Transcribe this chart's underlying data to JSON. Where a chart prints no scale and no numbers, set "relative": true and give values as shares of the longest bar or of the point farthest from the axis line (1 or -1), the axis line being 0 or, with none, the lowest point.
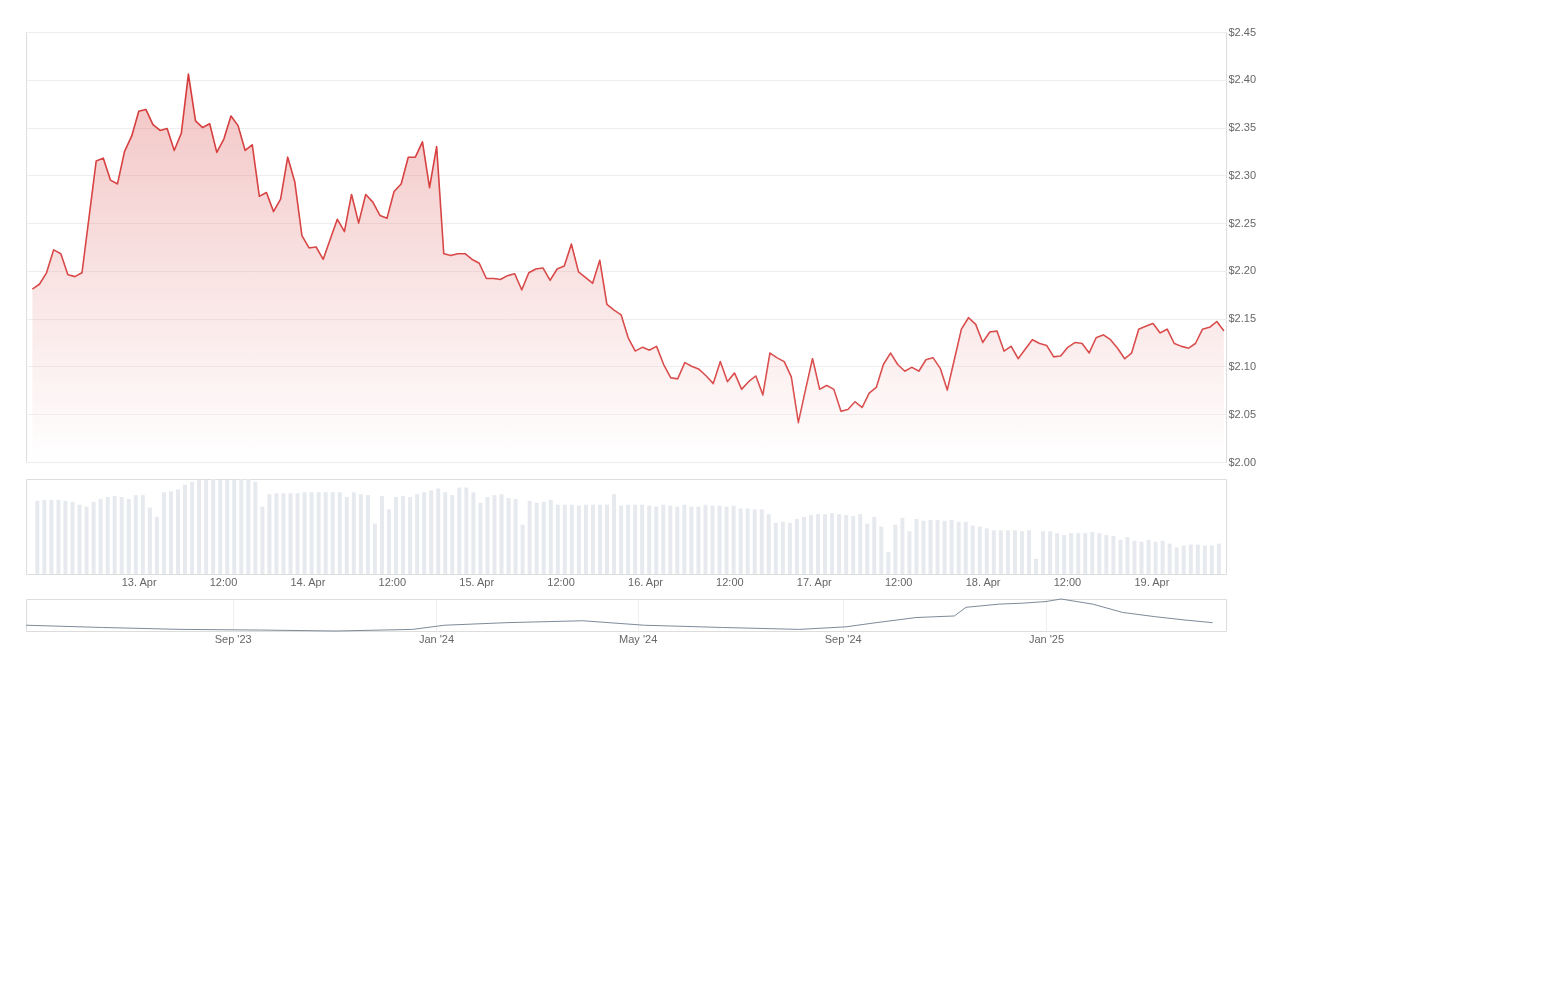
{
  "chart_data": [
    {
      "type": "area",
      "tick_labels": "y",
      "grid": "y",
      "xlim": [
        "2025-04-12T08:42",
        "2025-04-19T09:54"
      ],
      "ylim": [
        2.0,
        2.45
      ],
      "yticks": [
        {
          "value": 2.0,
          "label": "$2.00"
        },
        {
          "value": 2.05,
          "label": "$2.05"
        },
        {
          "value": 2.1,
          "label": "$2.10"
        },
        {
          "value": 2.15,
          "label": "$2.15"
        },
        {
          "value": 2.2,
          "label": "$2.20"
        },
        {
          "value": 2.25,
          "label": "$2.25"
        },
        {
          "value": 2.3,
          "label": "$2.30"
        },
        {
          "value": 2.35,
          "label": "$2.35"
        },
        {
          "value": 2.4,
          "label": "$2.40"
        },
        {
          "value": 2.45,
          "label": "$2.45"
        }
      ],
      "series": [
        {
          "color": "#d63a3a",
          "x": [
            "2025-04-12T09:36",
            "2025-04-12T10:36",
            "2025-04-12T11:36",
            "2025-04-12T12:36",
            "2025-04-12T13:36",
            "2025-04-12T14:36",
            "2025-04-12T15:36",
            "2025-04-12T16:36",
            "2025-04-12T18:36",
            "2025-04-12T19:36",
            "2025-04-12T20:36",
            "2025-04-12T21:36",
            "2025-04-12T22:36",
            "2025-04-12T23:36",
            "2025-04-13T00:36",
            "2025-04-13T01:36",
            "2025-04-13T02:36",
            "2025-04-13T03:36",
            "2025-04-13T04:36",
            "2025-04-13T05:36",
            "2025-04-13T06:36",
            "2025-04-13T07:36",
            "2025-04-13T08:36",
            "2025-04-13T09:36",
            "2025-04-13T10:36",
            "2025-04-13T11:36",
            "2025-04-13T12:36",
            "2025-04-13T13:36",
            "2025-04-13T14:36",
            "2025-04-13T15:36",
            "2025-04-13T16:36",
            "2025-04-13T17:36",
            "2025-04-13T18:36",
            "2025-04-13T19:36",
            "2025-04-13T20:36",
            "2025-04-13T21:36",
            "2025-04-13T22:36",
            "2025-04-13T23:36",
            "2025-04-14T00:36",
            "2025-04-14T01:36",
            "2025-04-14T02:36",
            "2025-04-14T04:36",
            "2025-04-14T05:36",
            "2025-04-14T06:36",
            "2025-04-14T07:36",
            "2025-04-14T08:36",
            "2025-04-14T09:36",
            "2025-04-14T10:36",
            "2025-04-14T11:36",
            "2025-04-14T12:36",
            "2025-04-14T13:36",
            "2025-04-14T14:36",
            "2025-04-14T15:36",
            "2025-04-14T16:36",
            "2025-04-14T17:36",
            "2025-04-14T18:36",
            "2025-04-14T19:36",
            "2025-04-14T20:36",
            "2025-04-14T21:36",
            "2025-04-14T22:36",
            "2025-04-14T23:36",
            "2025-04-15T00:36",
            "2025-04-15T01:36",
            "2025-04-15T02:36",
            "2025-04-15T03:36",
            "2025-04-15T04:36",
            "2025-04-15T05:36",
            "2025-04-15T06:36",
            "2025-04-15T07:36",
            "2025-04-15T08:36",
            "2025-04-15T09:36",
            "2025-04-15T10:36",
            "2025-04-15T11:36",
            "2025-04-15T12:36",
            "2025-04-15T13:36",
            "2025-04-15T14:36",
            "2025-04-15T15:36",
            "2025-04-15T16:36",
            "2025-04-15T17:36",
            "2025-04-15T18:36",
            "2025-04-15T19:36",
            "2025-04-15T20:36",
            "2025-04-15T21:36",
            "2025-04-15T22:36",
            "2025-04-15T23:36",
            "2025-04-16T00:36",
            "2025-04-16T01:36",
            "2025-04-16T02:36",
            "2025-04-16T03:36",
            "2025-04-16T04:36",
            "2025-04-16T05:36",
            "2025-04-16T06:36",
            "2025-04-16T07:36",
            "2025-04-16T08:36",
            "2025-04-16T09:36",
            "2025-04-16T10:36",
            "2025-04-16T11:36",
            "2025-04-16T12:36",
            "2025-04-16T13:36",
            "2025-04-16T14:36",
            "2025-04-16T15:36",
            "2025-04-16T16:36",
            "2025-04-16T17:36",
            "2025-04-16T18:36",
            "2025-04-16T19:36",
            "2025-04-16T20:36",
            "2025-04-16T21:36",
            "2025-04-16T22:36",
            "2025-04-16T23:36",
            "2025-04-17T00:36",
            "2025-04-17T01:36",
            "2025-04-17T02:36",
            "2025-04-17T03:36",
            "2025-04-17T04:36",
            "2025-04-17T05:36",
            "2025-04-17T06:36",
            "2025-04-17T07:36",
            "2025-04-17T08:36",
            "2025-04-17T09:36",
            "2025-04-17T10:36",
            "2025-04-17T11:36",
            "2025-04-17T12:36",
            "2025-04-17T13:36",
            "2025-04-17T14:36",
            "2025-04-17T15:36",
            "2025-04-17T16:36",
            "2025-04-17T17:36",
            "2025-04-17T18:36",
            "2025-04-17T19:36",
            "2025-04-17T20:36",
            "2025-04-17T21:36",
            "2025-04-17T22:36",
            "2025-04-17T23:36",
            "2025-04-18T00:36",
            "2025-04-18T01:36",
            "2025-04-18T02:36",
            "2025-04-18T03:36",
            "2025-04-18T04:36",
            "2025-04-18T05:36",
            "2025-04-18T06:36",
            "2025-04-18T07:36",
            "2025-04-18T08:36",
            "2025-04-18T09:36",
            "2025-04-18T10:36",
            "2025-04-18T11:36",
            "2025-04-18T12:36",
            "2025-04-18T13:36",
            "2025-04-18T14:36",
            "2025-04-18T15:36",
            "2025-04-18T16:36",
            "2025-04-18T17:36",
            "2025-04-18T18:36",
            "2025-04-18T19:36",
            "2025-04-18T20:36",
            "2025-04-18T21:36",
            "2025-04-18T22:36",
            "2025-04-18T23:36",
            "2025-04-19T00:36",
            "2025-04-19T01:36",
            "2025-04-19T02:36",
            "2025-04-19T03:36",
            "2025-04-19T04:36",
            "2025-04-19T05:36",
            "2025-04-19T06:36",
            "2025-04-19T07:36",
            "2025-04-19T08:36",
            "2025-04-19T09:36"
          ],
          "values": [
            2.181,
            2.186,
            2.198,
            2.222,
            2.218,
            2.196,
            2.194,
            2.198,
            2.315,
            2.318,
            2.295,
            2.291,
            2.325,
            2.341,
            2.367,
            2.369,
            2.353,
            2.347,
            2.349,
            2.326,
            2.344,
            2.406,
            2.357,
            2.35,
            2.354,
            2.324,
            2.338,
            2.362,
            2.352,
            2.326,
            2.332,
            2.278,
            2.282,
            2.262,
            2.275,
            2.319,
            2.293,
            2.237,
            2.224,
            2.225,
            2.212,
            2.254,
            2.241,
            2.28,
            2.25,
            2.28,
            2.272,
            2.258,
            2.255,
            2.283,
            2.291,
            2.319,
            2.319,
            2.335,
            2.287,
            2.33,
            2.218,
            2.216,
            2.218,
            2.218,
            2.212,
            2.208,
            2.192,
            2.192,
            2.191,
            2.195,
            2.197,
            2.18,
            2.198,
            2.202,
            2.203,
            2.19,
            2.202,
            2.205,
            2.228,
            2.199,
            2.193,
            2.187,
            2.211,
            2.165,
            2.159,
            2.154,
            2.13,
            2.116,
            2.12,
            2.117,
            2.121,
            2.102,
            2.088,
            2.087,
            2.104,
            2.1,
            2.097,
            2.09,
            2.082,
            2.105,
            2.084,
            2.093,
            2.076,
            2.084,
            2.09,
            2.07,
            2.114,
            2.109,
            2.105,
            2.089,
            2.041,
            2.075,
            2.108,
            2.076,
            2.08,
            2.076,
            2.053,
            2.055,
            2.063,
            2.057,
            2.072,
            2.078,
            2.102,
            2.114,
            2.102,
            2.095,
            2.099,
            2.095,
            2.107,
            2.109,
            2.098,
            2.075,
            2.107,
            2.139,
            2.151,
            2.144,
            2.125,
            2.136,
            2.137,
            2.116,
            2.121,
            2.108,
            2.118,
            2.128,
            2.124,
            2.122,
            2.11,
            2.111,
            2.12,
            2.125,
            2.124,
            2.114,
            2.13,
            2.133,
            2.128,
            2.119,
            2.108,
            2.114,
            2.139,
            2.142,
            2.145,
            2.135,
            2.139,
            2.124,
            2.121,
            2.119,
            2.124,
            2.139,
            2.141,
            2.147,
            2.137
          ]
        }
      ]
    },
    {
      "type": "bar",
      "relative": true,
      "tick_labels": "x",
      "xlim": [
        "2025-04-12T08:42",
        "2025-04-19T09:54"
      ],
      "xticks": [
        {
          "value": "2025-04-13T00:00",
          "label": "13. Apr"
        },
        {
          "value": "2025-04-13T12:00",
          "label": "12:00"
        },
        {
          "value": "2025-04-14T00:00",
          "label": "14. Apr"
        },
        {
          "value": "2025-04-14T12:00",
          "label": "12:00"
        },
        {
          "value": "2025-04-15T00:00",
          "label": "15. Apr"
        },
        {
          "value": "2025-04-15T12:00",
          "label": "12:00"
        },
        {
          "value": "2025-04-16T00:00",
          "label": "16. Apr"
        },
        {
          "value": "2025-04-16T12:00",
          "label": "12:00"
        },
        {
          "value": "2025-04-17T00:00",
          "label": "17. Apr"
        },
        {
          "value": "2025-04-17T12:00",
          "label": "12:00"
        },
        {
          "value": "2025-04-18T00:00",
          "label": "18. Apr"
        },
        {
          "value": "2025-04-18T12:00",
          "label": "12:00"
        },
        {
          "value": "2025-04-19T00:00",
          "label": "19. Apr"
        }
      ],
      "series": [
        {
          "color": "#e6eaee",
          "x": [
            "2025-04-12T09:36",
            "2025-04-12T10:36",
            "2025-04-12T11:36",
            "2025-04-12T12:36",
            "2025-04-12T13:36",
            "2025-04-12T14:36",
            "2025-04-12T15:36",
            "2025-04-12T16:36",
            "2025-04-12T17:36",
            "2025-04-12T18:36",
            "2025-04-12T19:36",
            "2025-04-12T20:36",
            "2025-04-12T21:36",
            "2025-04-12T22:36",
            "2025-04-12T23:36",
            "2025-04-13T00:36",
            "2025-04-13T01:36",
            "2025-04-13T02:36",
            "2025-04-13T03:36",
            "2025-04-13T04:36",
            "2025-04-13T05:36",
            "2025-04-13T06:36",
            "2025-04-13T07:36",
            "2025-04-13T08:36",
            "2025-04-13T09:36",
            "2025-04-13T10:36",
            "2025-04-13T11:36",
            "2025-04-13T12:36",
            "2025-04-13T13:36",
            "2025-04-13T14:36",
            "2025-04-13T15:36",
            "2025-04-13T16:36",
            "2025-04-13T17:36",
            "2025-04-13T18:36",
            "2025-04-13T19:36",
            "2025-04-13T20:36",
            "2025-04-13T21:36",
            "2025-04-13T22:36",
            "2025-04-13T23:36",
            "2025-04-14T00:36",
            "2025-04-14T01:36",
            "2025-04-14T02:36",
            "2025-04-14T03:36",
            "2025-04-14T04:36",
            "2025-04-14T05:36",
            "2025-04-14T06:36",
            "2025-04-14T07:36",
            "2025-04-14T08:36",
            "2025-04-14T09:36",
            "2025-04-14T10:36",
            "2025-04-14T11:36",
            "2025-04-14T12:36",
            "2025-04-14T13:36",
            "2025-04-14T14:36",
            "2025-04-14T15:36",
            "2025-04-14T16:36",
            "2025-04-14T17:36",
            "2025-04-14T18:36",
            "2025-04-14T19:36",
            "2025-04-14T20:36",
            "2025-04-14T21:36",
            "2025-04-14T22:36",
            "2025-04-14T23:36",
            "2025-04-15T00:36",
            "2025-04-15T01:36",
            "2025-04-15T02:36",
            "2025-04-15T03:36",
            "2025-04-15T04:36",
            "2025-04-15T05:36",
            "2025-04-15T06:36",
            "2025-04-15T07:36",
            "2025-04-15T08:36",
            "2025-04-15T09:36",
            "2025-04-15T10:36",
            "2025-04-15T11:36",
            "2025-04-15T12:36",
            "2025-04-15T13:36",
            "2025-04-15T14:36",
            "2025-04-15T15:36",
            "2025-04-15T16:36",
            "2025-04-15T17:36",
            "2025-04-15T18:36",
            "2025-04-15T19:36",
            "2025-04-15T20:36",
            "2025-04-15T21:36",
            "2025-04-15T22:36",
            "2025-04-15T23:36",
            "2025-04-16T00:36",
            "2025-04-16T01:36",
            "2025-04-16T02:36",
            "2025-04-16T03:36",
            "2025-04-16T04:36",
            "2025-04-16T05:36",
            "2025-04-16T06:36",
            "2025-04-16T07:36",
            "2025-04-16T08:36",
            "2025-04-16T09:36",
            "2025-04-16T10:36",
            "2025-04-16T11:36",
            "2025-04-16T12:36",
            "2025-04-16T13:36",
            "2025-04-16T14:36",
            "2025-04-16T15:36",
            "2025-04-16T16:36",
            "2025-04-16T17:36",
            "2025-04-16T18:36",
            "2025-04-16T19:36",
            "2025-04-16T20:36",
            "2025-04-16T21:36",
            "2025-04-16T22:36",
            "2025-04-16T23:36",
            "2025-04-17T00:36",
            "2025-04-17T01:36",
            "2025-04-17T02:36",
            "2025-04-17T03:36",
            "2025-04-17T04:36",
            "2025-04-17T05:36",
            "2025-04-17T06:36",
            "2025-04-17T07:36",
            "2025-04-17T08:36",
            "2025-04-17T09:36",
            "2025-04-17T10:36",
            "2025-04-17T11:36",
            "2025-04-17T12:36",
            "2025-04-17T13:36",
            "2025-04-17T14:36",
            "2025-04-17T15:36",
            "2025-04-17T16:36",
            "2025-04-17T17:36",
            "2025-04-17T18:36",
            "2025-04-17T19:36",
            "2025-04-17T20:36",
            "2025-04-17T21:36",
            "2025-04-17T22:36",
            "2025-04-17T23:36",
            "2025-04-18T00:36",
            "2025-04-18T01:36",
            "2025-04-18T02:36",
            "2025-04-18T03:36",
            "2025-04-18T04:36",
            "2025-04-18T05:36",
            "2025-04-18T06:36",
            "2025-04-18T07:36",
            "2025-04-18T08:36",
            "2025-04-18T09:36",
            "2025-04-18T10:36",
            "2025-04-18T11:36",
            "2025-04-18T12:36",
            "2025-04-18T13:36",
            "2025-04-18T14:36",
            "2025-04-18T15:36",
            "2025-04-18T16:36",
            "2025-04-18T17:36",
            "2025-04-18T18:36",
            "2025-04-18T19:36",
            "2025-04-18T20:36",
            "2025-04-18T21:36",
            "2025-04-18T22:36",
            "2025-04-18T23:36",
            "2025-04-19T00:36",
            "2025-04-19T01:36",
            "2025-04-19T02:36",
            "2025-04-19T03:36",
            "2025-04-19T04:36",
            "2025-04-19T05:36",
            "2025-04-19T06:36",
            "2025-04-19T07:36",
            "2025-04-19T08:36",
            "2025-04-19T09:36"
          ],
          "values": [
            0.77,
            0.78,
            0.78,
            0.78,
            0.77,
            0.76,
            0.73,
            0.71,
            0.76,
            0.79,
            0.81,
            0.82,
            0.81,
            0.79,
            0.83,
            0.83,
            0.7,
            0.6,
            0.86,
            0.87,
            0.89,
            0.94,
            0.97,
            0.99,
            0.99,
            1.0,
            0.99,
            0.99,
            0.99,
            1.0,
            1.0,
            0.97,
            0.71,
            0.84,
            0.85,
            0.85,
            0.85,
            0.85,
            0.86,
            0.86,
            0.86,
            0.86,
            0.86,
            0.86,
            0.81,
            0.86,
            0.84,
            0.83,
            0.53,
            0.82,
            0.68,
            0.81,
            0.82,
            0.81,
            0.84,
            0.86,
            0.88,
            0.9,
            0.86,
            0.83,
            0.91,
            0.91,
            0.86,
            0.75,
            0.81,
            0.83,
            0.84,
            0.8,
            0.79,
            0.52,
            0.77,
            0.75,
            0.76,
            0.78,
            0.73,
            0.73,
            0.73,
            0.72,
            0.73,
            0.73,
            0.73,
            0.73,
            0.84,
            0.72,
            0.73,
            0.73,
            0.73,
            0.72,
            0.71,
            0.73,
            0.72,
            0.71,
            0.73,
            0.71,
            0.71,
            0.73,
            0.72,
            0.72,
            0.71,
            0.72,
            0.69,
            0.69,
            0.68,
            0.68,
            0.63,
            0.54,
            0.55,
            0.54,
            0.58,
            0.6,
            0.62,
            0.63,
            0.63,
            0.64,
            0.63,
            0.62,
            0.61,
            0.63,
            0.53,
            0.6,
            0.5,
            0.23,
            0.52,
            0.59,
            0.45,
            0.58,
            0.56,
            0.57,
            0.57,
            0.56,
            0.57,
            0.55,
            0.55,
            0.51,
            0.5,
            0.48,
            0.46,
            0.46,
            0.46,
            0.46,
            0.45,
            0.46,
            0.16,
            0.45,
            0.45,
            0.43,
            0.41,
            0.43,
            0.43,
            0.43,
            0.44,
            0.43,
            0.41,
            0.4,
            0.36,
            0.39,
            0.35,
            0.34,
            0.36,
            0.34,
            0.35,
            0.32,
            0.28,
            0.3,
            0.31,
            0.31,
            0.3,
            0.3,
            0.32
          ]
        }
      ]
    },
    {
      "type": "line",
      "relative": true,
      "tick_labels": "x",
      "grid": "x",
      "xlim": [
        "2023-04-30",
        "2025-04-19"
      ],
      "xticks": [
        {
          "value": "2023-09-01",
          "label": "Sep '23"
        },
        {
          "value": "2024-01-01",
          "label": "Jan '24"
        },
        {
          "value": "2024-05-01",
          "label": "May '24"
        },
        {
          "value": "2024-09-01",
          "label": "Sep '24"
        },
        {
          "value": "2025-01-01",
          "label": "Jan '25"
        }
      ],
      "series": [
        {
          "color": "#7d8b99",
          "x": [
            "2023-04-30",
            "2023-06-15",
            "2023-08-01",
            "2023-09-17",
            "2023-11-02",
            "2023-12-18",
            "2024-01-06",
            "2024-02-12",
            "2024-03-29",
            "2024-05-05",
            "2024-06-21",
            "2024-08-06",
            "2024-09-03",
            "2024-09-21",
            "2024-10-15",
            "2024-11-07",
            "2024-11-14",
            "2024-12-04",
            "2024-12-18",
            "2025-01-01",
            "2025-01-10",
            "2025-01-29",
            "2025-02-16",
            "2025-03-07",
            "2025-03-26",
            "2025-04-11"
          ],
          "values": [
            0.18,
            0.11,
            0.05,
            0.03,
            0,
            0.05,
            0.18,
            0.26,
            0.32,
            0.18,
            0.11,
            0.05,
            0.13,
            0.26,
            0.42,
            0.47,
            0.74,
            0.84,
            0.87,
            0.92,
            1,
            0.84,
            0.58,
            0.45,
            0.34,
            0.26
          ]
        }
      ]
    }
  ]
}
